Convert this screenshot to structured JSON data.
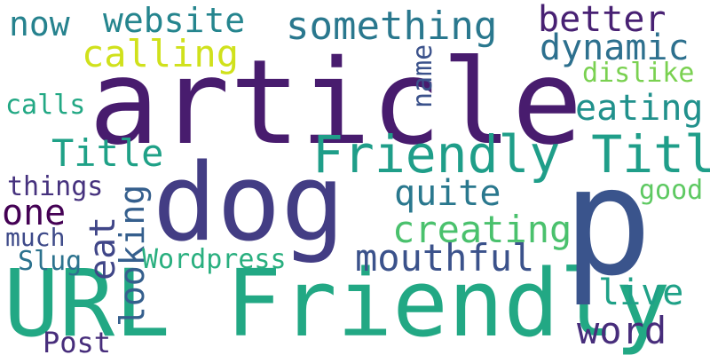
{
  "words": [
    {
      "id": "article",
      "text": "article",
      "color": "#481c6e"
    },
    {
      "id": "dog",
      "text": "dog",
      "color": "#433d84"
    },
    {
      "id": "url-friendly",
      "text": "URL Friendly",
      "color": "#22a884"
    },
    {
      "id": "p",
      "text": "p",
      "color": "#3a548c"
    },
    {
      "id": "friendly-title",
      "text": "Friendly Title",
      "color": "#1f9e89"
    },
    {
      "id": "something",
      "text": "something",
      "color": "#2a788e"
    },
    {
      "id": "website",
      "text": "website",
      "color": "#25858e"
    },
    {
      "id": "now",
      "text": "now",
      "color": "#26828e"
    },
    {
      "id": "calling",
      "text": "calling",
      "color": "#d0e11c"
    },
    {
      "id": "better",
      "text": "better",
      "color": "#482173"
    },
    {
      "id": "dynamic",
      "text": "dynamic",
      "color": "#2d708e"
    },
    {
      "id": "dislike",
      "text": "dislike",
      "color": "#7ad151"
    },
    {
      "id": "name",
      "text": "name",
      "color": "#3b528b"
    },
    {
      "id": "eating",
      "text": "eating",
      "color": "#21918c"
    },
    {
      "id": "calls",
      "text": "calls",
      "color": "#22a884"
    },
    {
      "id": "title",
      "text": "Title",
      "color": "#1fa187"
    },
    {
      "id": "things",
      "text": "things",
      "color": "#46327e"
    },
    {
      "id": "one",
      "text": "one",
      "color": "#440154"
    },
    {
      "id": "much",
      "text": "much",
      "color": "#3e4a89"
    },
    {
      "id": "slug",
      "text": "Slug",
      "color": "#2c728e"
    },
    {
      "id": "eat",
      "text": "eat",
      "color": "#404688"
    },
    {
      "id": "looking",
      "text": "looking",
      "color": "#355f8d"
    },
    {
      "id": "quite",
      "text": "quite",
      "color": "#2a788e"
    },
    {
      "id": "good",
      "text": "good",
      "color": "#5ec962"
    },
    {
      "id": "creating",
      "text": "creating",
      "color": "#4ac16d"
    },
    {
      "id": "wordpress",
      "text": "Wordpress",
      "color": "#29af7f"
    },
    {
      "id": "mouthful",
      "text": "mouthful",
      "color": "#3b528b"
    },
    {
      "id": "live",
      "text": "live",
      "color": "#1fa187"
    },
    {
      "id": "word",
      "text": "word",
      "color": "#472d7b"
    },
    {
      "id": "post",
      "text": "Post",
      "color": "#472d7b"
    }
  ]
}
